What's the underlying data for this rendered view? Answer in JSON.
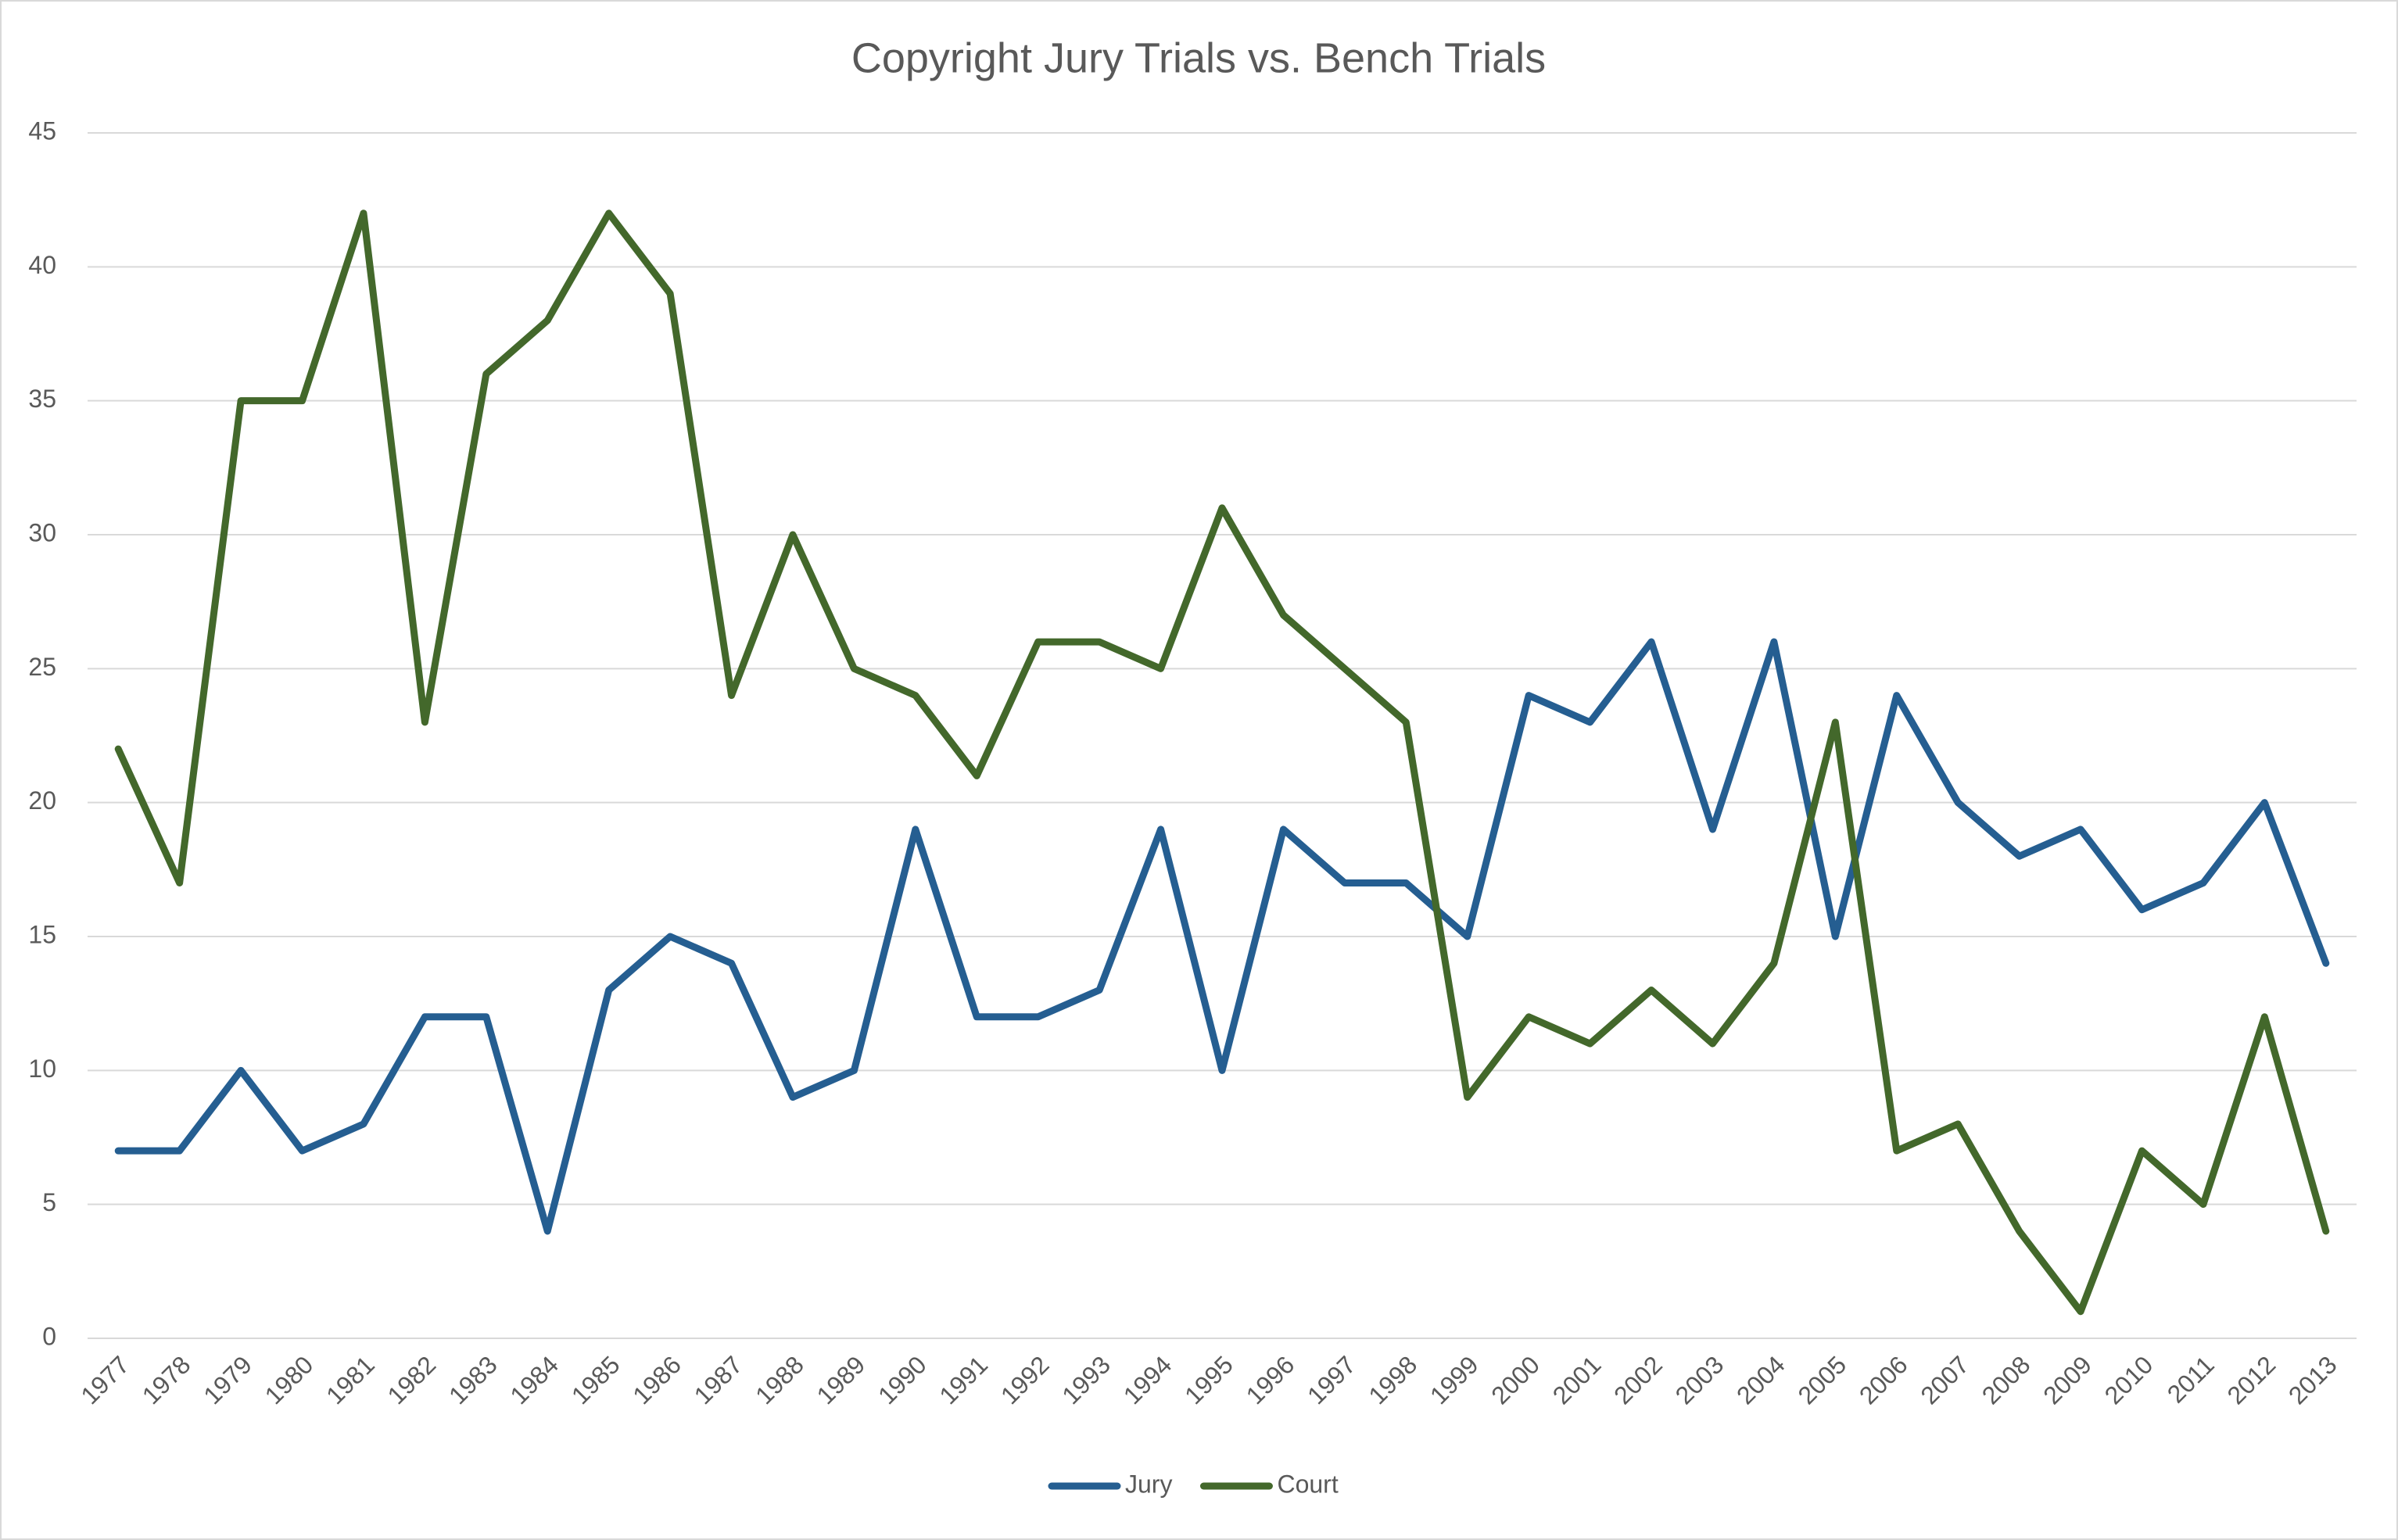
{
  "chart_data": {
    "type": "line",
    "title": "Copyright Jury Trials vs. Bench Trials",
    "categories": [
      "1977",
      "1978",
      "1979",
      "1980",
      "1981",
      "1982",
      "1983",
      "1984",
      "1985",
      "1986",
      "1987",
      "1988",
      "1989",
      "1990",
      "1991",
      "1992",
      "1993",
      "1994",
      "1995",
      "1996",
      "1997",
      "1998",
      "1999",
      "2000",
      "2001",
      "2002",
      "2003",
      "2004",
      "2005",
      "2006",
      "2007",
      "2008",
      "2009",
      "2010",
      "2011",
      "2012",
      "2013"
    ],
    "series": [
      {
        "name": "Jury",
        "color": "#255e91",
        "values": [
          7,
          7,
          10,
          7,
          8,
          12,
          12,
          4,
          13,
          15,
          14,
          9,
          10,
          19,
          12,
          12,
          13,
          19,
          10,
          19,
          17,
          17,
          15,
          24,
          23,
          26,
          19,
          26,
          15,
          24,
          20,
          18,
          19,
          16,
          17,
          20,
          14
        ]
      },
      {
        "name": "Court",
        "color": "#43682b",
        "values": [
          22,
          17,
          35,
          35,
          42,
          23,
          36,
          38,
          42,
          39,
          24,
          30,
          25,
          24,
          21,
          26,
          26,
          25,
          31,
          27,
          25,
          23,
          9,
          12,
          11,
          13,
          11,
          14,
          23,
          7,
          8,
          4,
          1,
          7,
          5,
          12,
          4
        ]
      }
    ],
    "ylim": [
      0,
      45
    ],
    "yticks": [
      0,
      5,
      10,
      15,
      20,
      25,
      30,
      35,
      40,
      45
    ],
    "grid": true,
    "legend": "bottom"
  }
}
